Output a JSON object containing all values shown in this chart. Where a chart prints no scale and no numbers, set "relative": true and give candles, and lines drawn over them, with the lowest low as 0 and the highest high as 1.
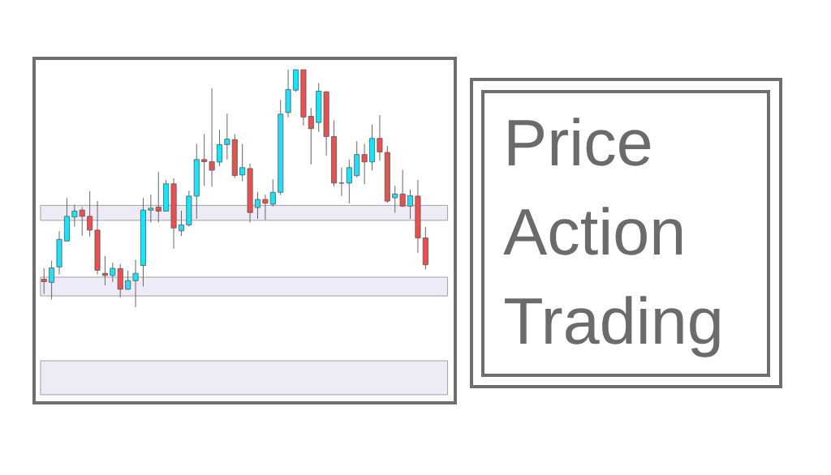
{
  "chart_data": {
    "type": "candlestick",
    "relative": true,
    "title": "Price Action Trading",
    "categories": [
      null,
      null,
      null,
      null,
      null,
      null,
      null,
      null,
      null,
      null,
      null,
      null,
      null,
      null,
      null,
      null,
      null,
      null,
      null,
      null,
      null,
      null,
      null,
      null,
      null,
      null,
      null,
      null,
      null,
      null,
      null,
      null,
      null,
      null,
      null,
      null,
      null,
      null,
      null,
      null,
      null,
      null,
      null,
      null,
      null,
      null,
      null,
      null,
      null,
      null,
      null
    ],
    "ohlc": [
      [
        0.118,
        0.164,
        0.056,
        0.108
      ],
      [
        0.105,
        0.196,
        0.033,
        0.166
      ],
      [
        0.17,
        0.32,
        0.139,
        0.286
      ],
      [
        0.279,
        0.46,
        0.279,
        0.383
      ],
      [
        0.38,
        0.432,
        0.34,
        0.405
      ],
      [
        0.409,
        0.422,
        0.301,
        0.383
      ],
      [
        0.383,
        0.488,
        0.298,
        0.325
      ],
      [
        0.325,
        0.448,
        0.139,
        0.156
      ],
      [
        0.143,
        0.215,
        0.093,
        0.134
      ],
      [
        0.134,
        0.187,
        0.107,
        0.164
      ],
      [
        0.163,
        0.183,
        0.042,
        0.076
      ],
      [
        0.076,
        0.154,
        0.074,
        0.112
      ],
      [
        0.112,
        0.2,
        0,
        0.143
      ],
      [
        0.176,
        0.46,
        0.088,
        0.409
      ],
      [
        0.409,
        0.474,
        0.357,
        0.417
      ],
      [
        0.422,
        0.569,
        0.357,
        0.405
      ],
      [
        0.405,
        0.536,
        0.405,
        0.52
      ],
      [
        0.52,
        0.543,
        0.247,
        0.334
      ],
      [
        0.322,
        0.406,
        0.301,
        0.347
      ],
      [
        0.347,
        0.491,
        0.34,
        0.468
      ],
      [
        0.468,
        0.688,
        0.372,
        0.622
      ],
      [
        0.622,
        0.73,
        0.511,
        0.613
      ],
      [
        0.613,
        0.922,
        0.508,
        0.577
      ],
      [
        0.611,
        0.747,
        0.595,
        0.685
      ],
      [
        0.685,
        0.815,
        0.622,
        0.708
      ],
      [
        0.706,
        0.729,
        0.545,
        0.555
      ],
      [
        0.557,
        0.688,
        0.531,
        0.588
      ],
      [
        0.584,
        0.604,
        0.357,
        0.399
      ],
      [
        0.42,
        0.485,
        0.372,
        0.454
      ],
      [
        0.454,
        0.474,
        0.368,
        0.438
      ],
      [
        0.434,
        0.539,
        0.424,
        0.484
      ],
      [
        0.484,
        0.873,
        0.472,
        0.813
      ],
      [
        0.82,
        1,
        0.8,
        0.917
      ],
      [
        0.914,
        1,
        0.907,
        1
      ],
      [
        1,
        1,
        0.765,
        0.801
      ],
      [
        0.804,
        0.839,
        0.602,
        0.752
      ],
      [
        0.778,
        0.944,
        0.738,
        0.91
      ],
      [
        0.907,
        0.91,
        0.639,
        0.719
      ],
      [
        0.719,
        0.787,
        0.509,
        0.523
      ],
      [
        0.523,
        0.588,
        0.469,
        0.523
      ],
      [
        0.523,
        0.622,
        0.437,
        0.588
      ],
      [
        0.554,
        0.699,
        0.547,
        0.643
      ],
      [
        0.643,
        0.688,
        0.518,
        0.612
      ],
      [
        0.612,
        0.77,
        0.576,
        0.711
      ],
      [
        0.711,
        0.809,
        0.617,
        0.654
      ],
      [
        0.652,
        0.679,
        0.44,
        0.447
      ],
      [
        0.461,
        0.511,
        0.398,
        0.477
      ],
      [
        0.477,
        0.579,
        0.422,
        0.426
      ],
      [
        0.426,
        0.495,
        0.372,
        0.47
      ],
      [
        0.468,
        0.536,
        0.23,
        0.292
      ],
      [
        0.292,
        0.338,
        0.159,
        0.179
      ]
    ],
    "colors": [
      "#e8514f",
      "#1be3f7",
      "#1be3f7",
      "#1be3f7",
      "#1be3f7",
      "#e8514f",
      "#e8514f",
      "#e8514f",
      "#e8514f",
      "#1be3f7",
      "#e8514f",
      "#1be3f7",
      "#1be3f7",
      "#1be3f7",
      "#1be3f7",
      "#e8514f",
      "#1be3f7",
      "#e8514f",
      "#1be3f7",
      "#1be3f7",
      "#1be3f7",
      "#e8514f",
      "#e8514f",
      "#1be3f7",
      "#1be3f7",
      "#e8514f",
      "#1be3f7",
      "#e8514f",
      "#1be3f7",
      "#e8514f",
      "#1be3f7",
      "#1be3f7",
      "#1be3f7",
      "#1be3f7",
      "#e8514f",
      "#e8514f",
      "#1be3f7",
      "#e8514f",
      "#e8514f",
      "#555555",
      "#1be3f7",
      "#1be3f7",
      "#e8514f",
      "#1be3f7",
      "#e8514f",
      "#e8514f",
      "#1be3f7",
      "#e8514f",
      "#1be3f7",
      "#e8514f",
      "#e8514f"
    ],
    "bands": [
      {
        "axis": "y",
        "from": 0.048,
        "to": 0.127,
        "color": "#eeebf6"
      },
      {
        "axis": "y",
        "from": 0.366,
        "to": 0.429,
        "color": "#eeebf6"
      },
      {
        "axis": "y",
        "from": -0.368,
        "to": -0.225,
        "color": "#eeebf6"
      }
    ]
  }
}
